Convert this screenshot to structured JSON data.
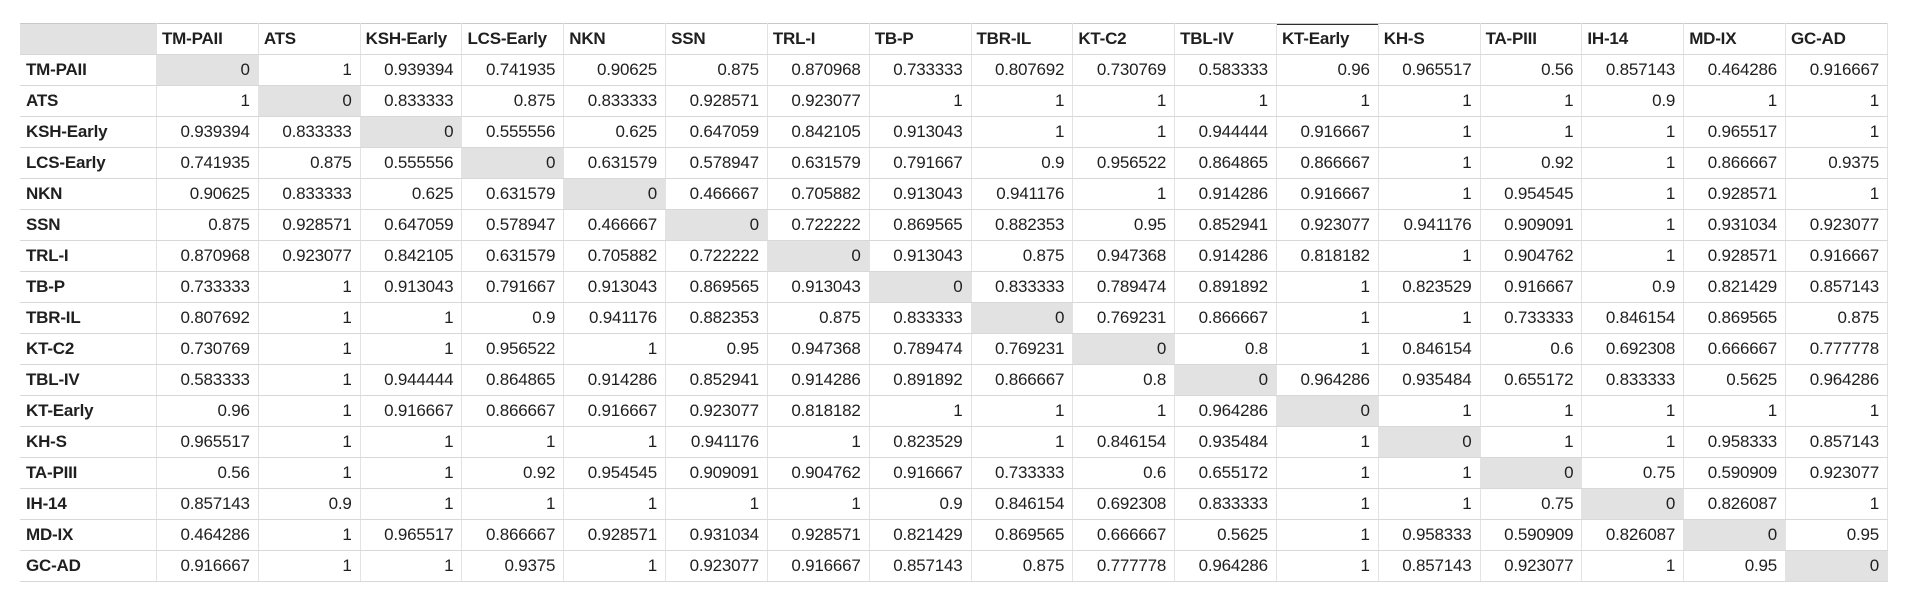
{
  "page": {
    "background": "#ffffff"
  },
  "colors": {
    "horizontal_grid_line": "#d8d8d8",
    "vertical_grid_line": "#e3e3e3",
    "diagonal_cell_fill": "#e2e2e2",
    "text": "#1f1f1f",
    "highlight_column_bar": "#2e2e2e"
  },
  "chart_data": {
    "type": "table",
    "description": "Symmetric pairwise distance/dissimilarity matrix; diagonal cells are 0 and shaded gray; KT-Early column header carries a dark top selection bar",
    "corner_label": "",
    "highlighted_column": "KT-Early",
    "columns": [
      "TM-PAII",
      "ATS",
      "KSH-Early",
      "LCS-Early",
      "NKN",
      "SSN",
      "TRL-I",
      "TB-P",
      "TBR-IL",
      "KT-C2",
      "TBL-IV",
      "KT-Early",
      "KH-S",
      "TA-PIII",
      "IH-14",
      "MD-IX",
      "GC-AD"
    ],
    "rows": [
      {
        "label": "TM-PAII",
        "values": [
          0,
          1,
          0.939394,
          0.741935,
          0.90625,
          0.875,
          0.870968,
          0.733333,
          0.807692,
          0.730769,
          0.583333,
          0.96,
          0.965517,
          0.56,
          0.857143,
          0.464286,
          0.916667
        ]
      },
      {
        "label": "ATS",
        "values": [
          1,
          0,
          0.833333,
          0.875,
          0.833333,
          0.928571,
          0.923077,
          1,
          1,
          1,
          1,
          1,
          1,
          1,
          0.9,
          1,
          1
        ]
      },
      {
        "label": "KSH-Early",
        "values": [
          0.939394,
          0.833333,
          0,
          0.555556,
          0.625,
          0.647059,
          0.842105,
          0.913043,
          1,
          1,
          0.944444,
          0.916667,
          1,
          1,
          1,
          0.965517,
          1
        ]
      },
      {
        "label": "LCS-Early",
        "values": [
          0.741935,
          0.875,
          0.555556,
          0,
          0.631579,
          0.578947,
          0.631579,
          0.791667,
          0.9,
          0.956522,
          0.864865,
          0.866667,
          1,
          0.92,
          1,
          0.866667,
          0.9375
        ]
      },
      {
        "label": "NKN",
        "values": [
          0.90625,
          0.833333,
          0.625,
          0.631579,
          0,
          0.466667,
          0.705882,
          0.913043,
          0.941176,
          1,
          0.914286,
          0.916667,
          1,
          0.954545,
          1,
          0.928571,
          1
        ]
      },
      {
        "label": "SSN",
        "values": [
          0.875,
          0.928571,
          0.647059,
          0.578947,
          0.466667,
          0,
          0.722222,
          0.869565,
          0.882353,
          0.95,
          0.852941,
          0.923077,
          0.941176,
          0.909091,
          1,
          0.931034,
          0.923077
        ]
      },
      {
        "label": "TRL-I",
        "values": [
          0.870968,
          0.923077,
          0.842105,
          0.631579,
          0.705882,
          0.722222,
          0,
          0.913043,
          0.875,
          0.947368,
          0.914286,
          0.818182,
          1,
          0.904762,
          1,
          0.928571,
          0.916667
        ]
      },
      {
        "label": "TB-P",
        "values": [
          0.733333,
          1,
          0.913043,
          0.791667,
          0.913043,
          0.869565,
          0.913043,
          0,
          0.833333,
          0.789474,
          0.891892,
          1,
          0.823529,
          0.916667,
          0.9,
          0.821429,
          0.857143
        ]
      },
      {
        "label": "TBR-IL",
        "values": [
          0.807692,
          1,
          1,
          0.9,
          0.941176,
          0.882353,
          0.875,
          0.833333,
          0,
          0.769231,
          0.866667,
          1,
          1,
          0.733333,
          0.846154,
          0.869565,
          0.875
        ]
      },
      {
        "label": "KT-C2",
        "values": [
          0.730769,
          1,
          1,
          0.956522,
          1,
          0.95,
          0.947368,
          0.789474,
          0.769231,
          0,
          0.8,
          1,
          0.846154,
          0.6,
          0.692308,
          0.666667,
          0.777778
        ]
      },
      {
        "label": "TBL-IV",
        "values": [
          0.583333,
          1,
          0.944444,
          0.864865,
          0.914286,
          0.852941,
          0.914286,
          0.891892,
          0.866667,
          0.8,
          0,
          0.964286,
          0.935484,
          0.655172,
          0.833333,
          0.5625,
          0.964286
        ]
      },
      {
        "label": "KT-Early",
        "values": [
          0.96,
          1,
          0.916667,
          0.866667,
          0.916667,
          0.923077,
          0.818182,
          1,
          1,
          1,
          0.964286,
          0,
          1,
          1,
          1,
          1,
          1
        ]
      },
      {
        "label": "KH-S",
        "values": [
          0.965517,
          1,
          1,
          1,
          1,
          0.941176,
          1,
          0.823529,
          1,
          0.846154,
          0.935484,
          1,
          0,
          1,
          1,
          0.958333,
          0.857143
        ]
      },
      {
        "label": "TA-PIII",
        "values": [
          0.56,
          1,
          1,
          0.92,
          0.954545,
          0.909091,
          0.904762,
          0.916667,
          0.733333,
          0.6,
          0.655172,
          1,
          1,
          0,
          0.75,
          0.590909,
          0.923077
        ]
      },
      {
        "label": "IH-14",
        "values": [
          0.857143,
          0.9,
          1,
          1,
          1,
          1,
          1,
          0.9,
          0.846154,
          0.692308,
          0.833333,
          1,
          1,
          0.75,
          0,
          0.826087,
          1
        ]
      },
      {
        "label": "MD-IX",
        "values": [
          0.464286,
          1,
          0.965517,
          0.866667,
          0.928571,
          0.931034,
          0.928571,
          0.821429,
          0.869565,
          0.666667,
          0.5625,
          1,
          0.958333,
          0.590909,
          0.826087,
          0,
          0.95
        ]
      },
      {
        "label": "GC-AD",
        "values": [
          0.916667,
          1,
          1,
          0.9375,
          1,
          0.923077,
          0.916667,
          0.857143,
          0.875,
          0.777778,
          0.964286,
          1,
          0.857143,
          0.923077,
          1,
          0.95,
          0
        ]
      }
    ]
  }
}
